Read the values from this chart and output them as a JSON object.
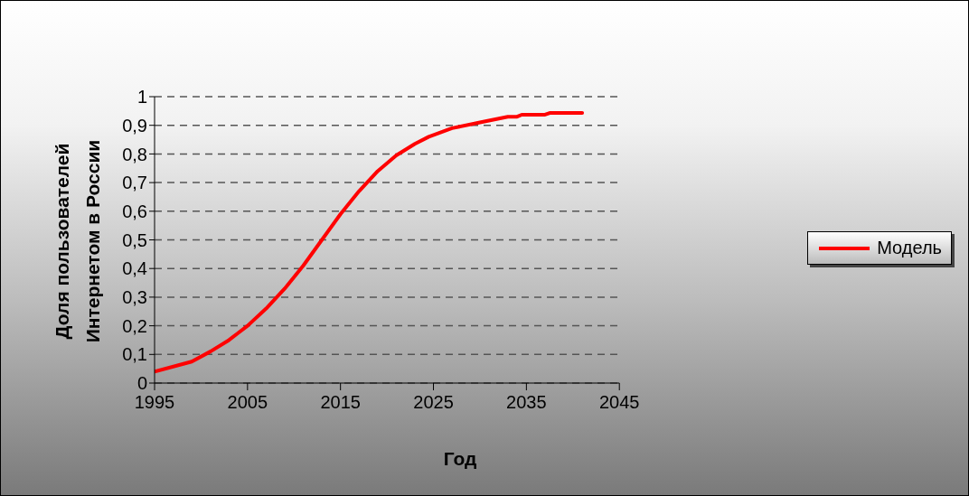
{
  "chart_data": {
    "type": "line",
    "xlabel": "Год",
    "ylabel": "Доля пользователей Интернетом в России",
    "x": [
      1995,
      1999,
      2001,
      2003,
      2004,
      2005,
      2007,
      2009,
      2011,
      2013,
      2015,
      2017,
      2019,
      2021,
      2023,
      2024.5,
      2027,
      2030,
      2033,
      2034,
      2034.5,
      2037,
      2037.5,
      2041
    ],
    "series": [
      {
        "name": "Модель",
        "color": "#ff0000",
        "values": [
          0.04,
          0.075,
          0.11,
          0.15,
          0.175,
          0.2,
          0.26,
          0.33,
          0.41,
          0.5,
          0.59,
          0.67,
          0.74,
          0.795,
          0.835,
          0.86,
          0.89,
          0.91,
          0.93,
          0.93,
          0.937,
          0.937,
          0.943,
          0.943
        ]
      }
    ],
    "xlim": [
      1995,
      2045
    ],
    "xticks": [
      1995,
      2005,
      2015,
      2025,
      2035,
      2045
    ],
    "ylim": [
      0,
      1
    ],
    "yticks": [
      0,
      {
        "value": 0.1,
        "label": "0,1"
      },
      {
        "value": 0.2,
        "label": "0,2"
      },
      {
        "value": 0.3,
        "label": "0,3"
      },
      {
        "value": 0.4,
        "label": "0,4"
      },
      {
        "value": 0.5,
        "label": "0,5"
      },
      {
        "value": 0.6,
        "label": "0,6"
      },
      {
        "value": 0.7,
        "label": "0,7"
      },
      {
        "value": 0.8,
        "label": "0,8"
      },
      {
        "value": 0.9,
        "label": "0,9"
      },
      1
    ],
    "grid": "y",
    "legend": "right",
    "marker": "none",
    "line_style": "solid"
  }
}
